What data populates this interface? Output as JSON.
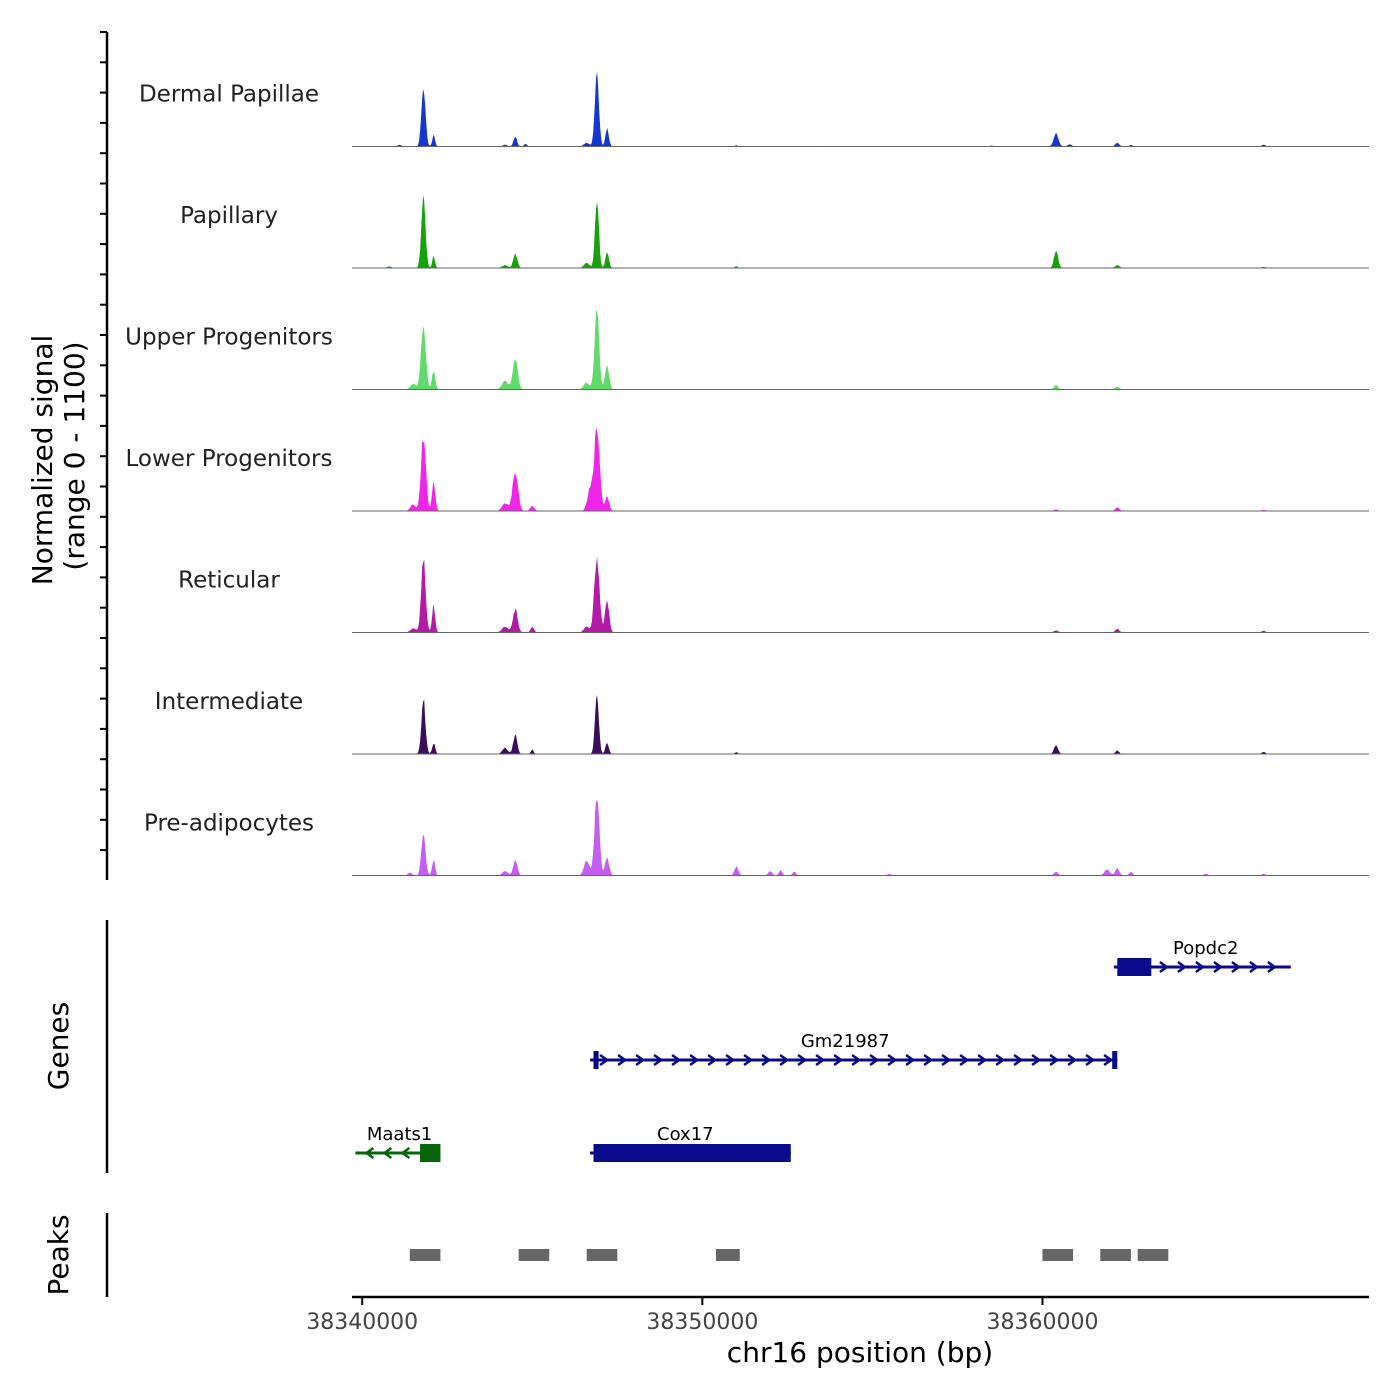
{
  "chart_data": {
    "type": "area",
    "title": "",
    "ylabel": "Normalized signal",
    "ylabel_range": "(range 0 - 1100)",
    "xlabel": "chr16 position (bp)",
    "xlim": [
      38339700,
      38369600
    ],
    "ylim": [
      0,
      1100
    ],
    "x_ticks": [
      38340000,
      38350000,
      38360000
    ],
    "x_tick_labels": [
      "38340000",
      "38350000",
      "38360000"
    ],
    "tracks": [
      {
        "name": "Dermal Papillae",
        "color": "#1537d0",
        "peaks": [
          [
            38341800,
            780,
            60
          ],
          [
            38342100,
            160,
            40
          ],
          [
            38344200,
            25,
            60
          ],
          [
            38344500,
            140,
            50
          ],
          [
            38344800,
            40,
            40
          ],
          [
            38346900,
            1000,
            60
          ],
          [
            38347200,
            250,
            50
          ],
          [
            38346600,
            50,
            80
          ],
          [
            38351000,
            15,
            40
          ],
          [
            38360400,
            180,
            70
          ],
          [
            38360800,
            30,
            60
          ],
          [
            38362200,
            50,
            60
          ],
          [
            38362600,
            20,
            50
          ],
          [
            38366500,
            25,
            50
          ],
          [
            38341100,
            20,
            60
          ],
          [
            38353500,
            8,
            60
          ],
          [
            38358500,
            12,
            60
          ]
        ]
      },
      {
        "name": "Papillary",
        "color": "#16a20a",
        "peaks": [
          [
            38341800,
            1000,
            60
          ],
          [
            38342100,
            160,
            40
          ],
          [
            38344500,
            200,
            60
          ],
          [
            38344200,
            40,
            80
          ],
          [
            38346900,
            1000,
            55
          ],
          [
            38347200,
            230,
            50
          ],
          [
            38346600,
            70,
            80
          ],
          [
            38351000,
            25,
            40
          ],
          [
            38360400,
            240,
            60
          ],
          [
            38362200,
            40,
            60
          ],
          [
            38340800,
            20,
            60
          ],
          [
            38366500,
            15,
            60
          ]
        ]
      },
      {
        "name": "Upper Progenitors",
        "color": "#60da6a",
        "peaks": [
          [
            38341800,
            900,
            70
          ],
          [
            38342100,
            250,
            50
          ],
          [
            38341500,
            80,
            80
          ],
          [
            38344500,
            440,
            70
          ],
          [
            38344200,
            120,
            90
          ],
          [
            38346900,
            1100,
            65
          ],
          [
            38347200,
            330,
            60
          ],
          [
            38346600,
            90,
            90
          ],
          [
            38360400,
            60,
            60
          ],
          [
            38362200,
            40,
            60
          ]
        ]
      },
      {
        "name": "Lower Progenitors",
        "color": "#f025e7",
        "peaks": [
          [
            38341800,
            1050,
            70
          ],
          [
            38342100,
            380,
            50
          ],
          [
            38341500,
            90,
            80
          ],
          [
            38344500,
            540,
            80
          ],
          [
            38344200,
            100,
            90
          ],
          [
            38345000,
            70,
            60
          ],
          [
            38346900,
            1100,
            80
          ],
          [
            38346700,
            300,
            80
          ],
          [
            38347200,
            200,
            60
          ],
          [
            38360400,
            20,
            60
          ],
          [
            38362200,
            50,
            60
          ],
          [
            38366500,
            15,
            60
          ]
        ]
      },
      {
        "name": "Reticular",
        "color": "#b51aa6",
        "peaks": [
          [
            38341800,
            1000,
            65
          ],
          [
            38342100,
            380,
            45
          ],
          [
            38341500,
            60,
            80
          ],
          [
            38344500,
            320,
            70
          ],
          [
            38344200,
            80,
            90
          ],
          [
            38345000,
            80,
            50
          ],
          [
            38346900,
            1050,
            75
          ],
          [
            38347200,
            450,
            60
          ],
          [
            38346600,
            80,
            80
          ],
          [
            38360400,
            30,
            60
          ],
          [
            38362200,
            50,
            60
          ],
          [
            38366500,
            25,
            50
          ]
        ]
      },
      {
        "name": "Intermediate",
        "color": "#3b0e5b",
        "peaks": [
          [
            38341800,
            750,
            60
          ],
          [
            38342100,
            150,
            45
          ],
          [
            38344500,
            260,
            60
          ],
          [
            38344200,
            80,
            80
          ],
          [
            38345000,
            60,
            40
          ],
          [
            38346900,
            850,
            55
          ],
          [
            38347200,
            150,
            50
          ],
          [
            38351000,
            25,
            40
          ],
          [
            38360400,
            120,
            60
          ],
          [
            38362200,
            50,
            50
          ],
          [
            38366500,
            30,
            50
          ]
        ]
      },
      {
        "name": "Pre-adipocytes",
        "color": "#c25ff0",
        "peaks": [
          [
            38341800,
            600,
            60
          ],
          [
            38342100,
            220,
            45
          ],
          [
            38341400,
            40,
            60
          ],
          [
            38344500,
            220,
            60
          ],
          [
            38344200,
            60,
            80
          ],
          [
            38346900,
            1100,
            70
          ],
          [
            38346600,
            200,
            80
          ],
          [
            38347200,
            250,
            60
          ],
          [
            38351000,
            120,
            60
          ],
          [
            38352000,
            60,
            60
          ],
          [
            38352300,
            70,
            50
          ],
          [
            38352700,
            50,
            50
          ],
          [
            38355500,
            20,
            60
          ],
          [
            38360400,
            50,
            60
          ],
          [
            38361900,
            80,
            80
          ],
          [
            38362200,
            100,
            60
          ],
          [
            38362600,
            50,
            50
          ],
          [
            38364800,
            20,
            60
          ],
          [
            38366500,
            20,
            60
          ]
        ]
      }
    ],
    "genes": {
      "label": "Genes",
      "items": [
        {
          "name": "Popdc2",
          "strand": "+",
          "color": "#0a0a8c",
          "row": 1,
          "start": 38362100,
          "end": 38367300,
          "exon": [
            38362200,
            38363200
          ],
          "label_x": 38364800
        },
        {
          "name": "Gm21987",
          "strand": "+",
          "color": "#0a0a8c",
          "row": 2,
          "start": 38346700,
          "end": 38362200,
          "exon": [
            38346800,
            38346950
          ],
          "exon2": [
            38362050,
            38362200
          ],
          "label_x": 38354200
        },
        {
          "name": "Maats1",
          "strand": "-",
          "color": "#07660a",
          "row": 3,
          "start": 38339800,
          "end": 38342300,
          "exon": [
            38341700,
            38342300
          ],
          "label_x": 38341100
        },
        {
          "name": "Cox17",
          "strand": "+",
          "color": "#0a0a8c",
          "row": 3,
          "start": 38346700,
          "end": 38352600,
          "exon": [
            38346800,
            38352600
          ],
          "label_x": 38349500
        }
      ]
    },
    "peaks": {
      "label": "Peaks",
      "regions": [
        [
          38341400,
          38342300
        ],
        [
          38344600,
          38345500
        ],
        [
          38346600,
          38347500
        ],
        [
          38350400,
          38351100
        ],
        [
          38360000,
          38360900
        ],
        [
          38361700,
          38362600
        ],
        [
          38362800,
          38363700
        ]
      ],
      "color": "#666666"
    }
  }
}
